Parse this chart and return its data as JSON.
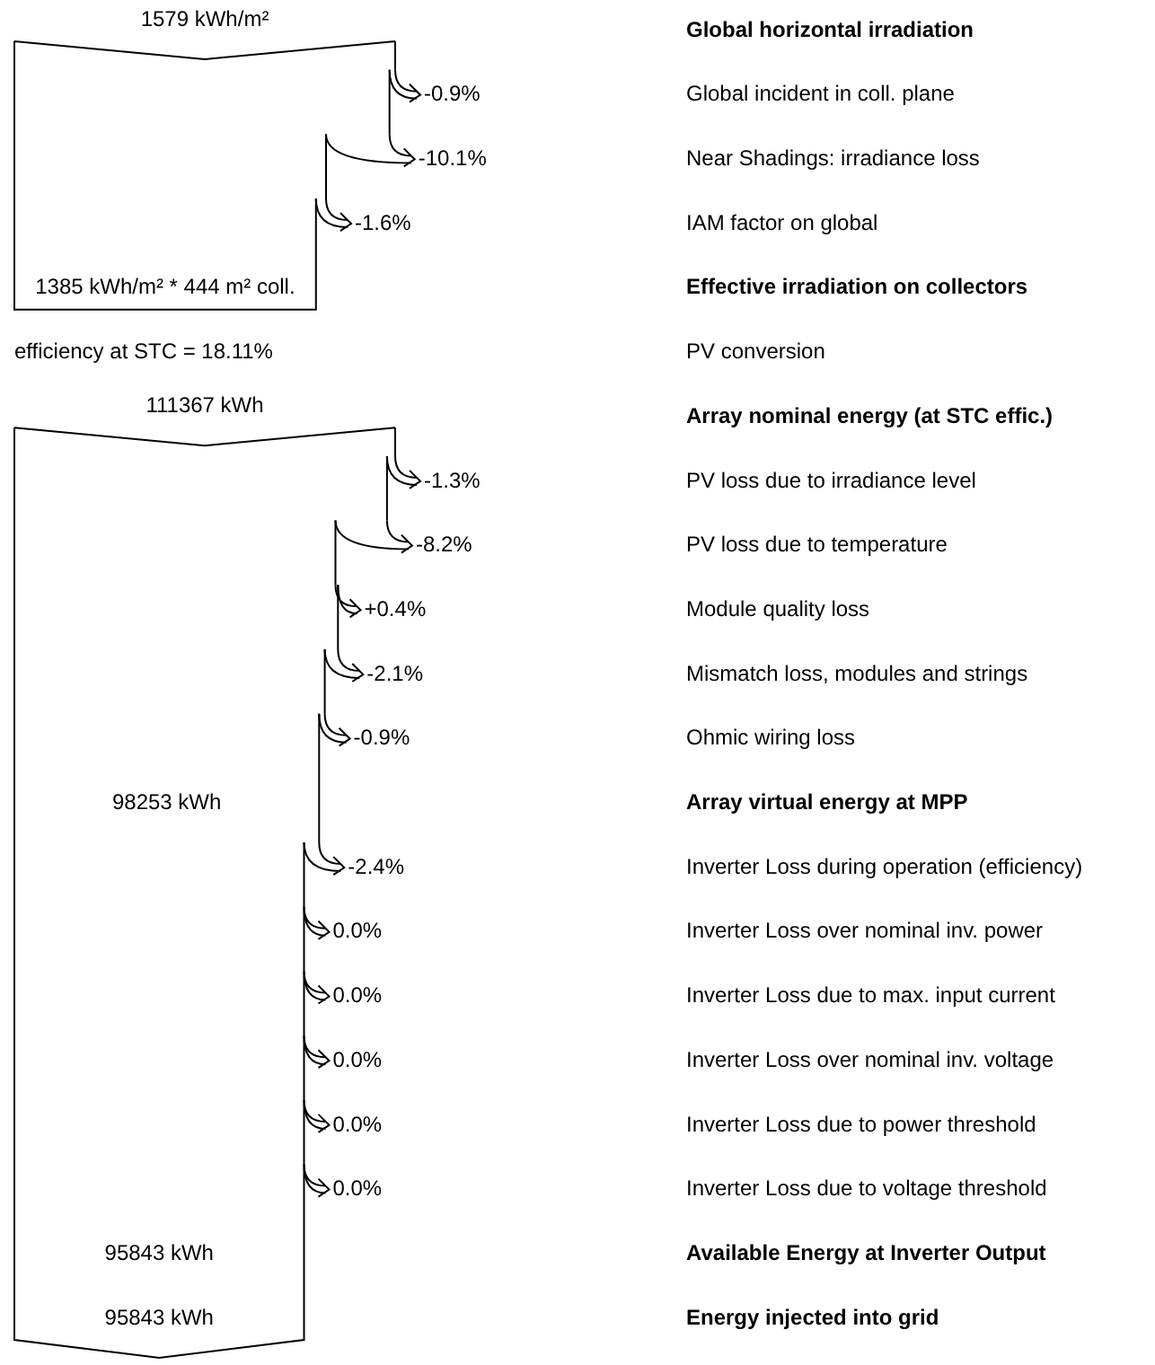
{
  "chart_data": {
    "type": "other",
    "categories": [
      "Global horizontal irradiation",
      "Global incident in coll. plane",
      "Near Shadings: irradiance loss",
      "IAM factor on global",
      "Effective irradiation on collectors",
      "PV conversion",
      "Array nominal energy (at STC effic.)",
      "PV loss due to irradiance level",
      "PV loss due to temperature",
      "Module quality loss",
      "Mismatch loss, modules and strings",
      "Ohmic wiring loss",
      "Array virtual energy at MPP",
      "Inverter Loss during operation (efficiency)",
      "Inverter Loss over nominal inv. power",
      "Inverter Loss due to max. input current",
      "Inverter Loss over nominal inv. voltage",
      "Inverter Loss due to power threshold",
      "Inverter Loss due to voltage threshold",
      "Available Energy at Inverter Output",
      "Energy injected into grid"
    ],
    "values": [
      null,
      -0.9,
      -10.1,
      -1.6,
      null,
      null,
      null,
      -1.3,
      -8.2,
      0.4,
      -2.1,
      -0.9,
      null,
      -2.4,
      0.0,
      0.0,
      0.0,
      0.0,
      0.0,
      null,
      null
    ],
    "value_labels": [
      "1579 kWh/m²",
      "-0.9%",
      "-10.1%",
      "-1.6%",
      "1385 kWh/m² * 444 m² coll.",
      null,
      "111367 kWh",
      "-1.3%",
      "-8.2%",
      "+0.4%",
      "-2.1%",
      "-0.9%",
      "98253 kWh",
      "-2.4%",
      "0.0%",
      "0.0%",
      "0.0%",
      "0.0%",
      "0.0%",
      "95843 kWh",
      "95843 kWh"
    ],
    "annotations": [
      {
        "text": "efficiency at STC = 18.11%",
        "x": "PV conversion"
      }
    ]
  }
}
